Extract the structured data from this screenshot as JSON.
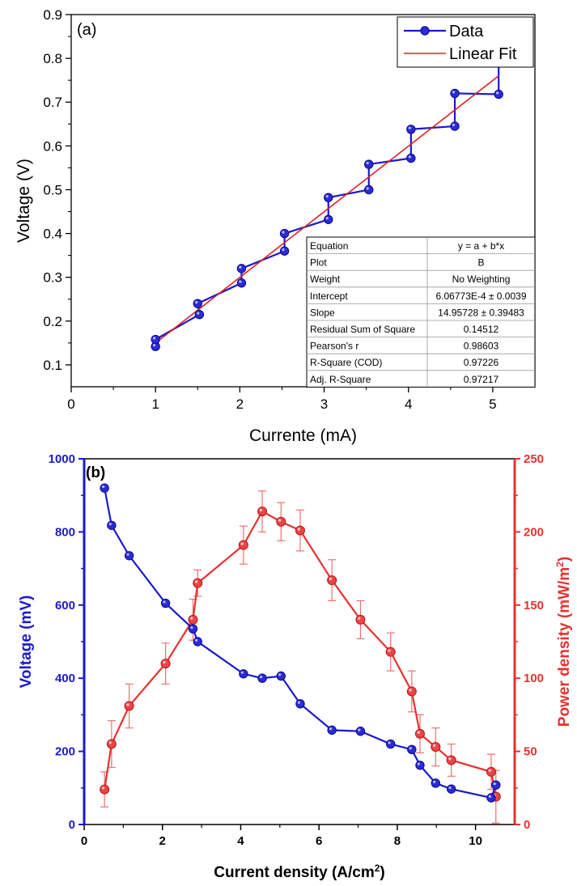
{
  "chart_data": [
    {
      "panel": "(a)",
      "type": "line",
      "xlabel": "Currente (mA)",
      "ylabel": "Voltage (V)",
      "xlim": [
        0,
        5.5
      ],
      "ylim": [
        0.05,
        0.9
      ],
      "x_ticks": [
        "0",
        "1",
        "2",
        "3",
        "4",
        "5"
      ],
      "y_ticks": [
        "0.1",
        "0.2",
        "0.3",
        "0.4",
        "0.5",
        "0.6",
        "0.7",
        "0.8",
        "0.9"
      ],
      "series": [
        {
          "name": "Data",
          "color": "#1a1acc",
          "marker": "circle",
          "x": [
            1.0,
            1.0,
            1.52,
            1.5,
            2.02,
            2.02,
            2.53,
            2.53,
            3.05,
            3.05,
            3.53,
            3.53,
            4.03,
            4.03,
            4.55,
            4.55,
            5.07,
            5.07
          ],
          "y": [
            0.142,
            0.158,
            0.215,
            0.24,
            0.287,
            0.32,
            0.36,
            0.4,
            0.432,
            0.482,
            0.5,
            0.558,
            0.572,
            0.638,
            0.645,
            0.72,
            0.718,
            0.8
          ]
        },
        {
          "name": "Linear Fit",
          "color": "#e0201c",
          "x": [
            1.0,
            5.07
          ],
          "y": [
            0.15,
            0.76
          ]
        }
      ],
      "legend": {
        "position": "top-right",
        "entries": [
          "Data",
          "Linear Fit"
        ]
      },
      "fit_table": [
        [
          "Equation",
          "y = a + b*x"
        ],
        [
          "Plot",
          "B"
        ],
        [
          "Weight",
          "No Weighting"
        ],
        [
          "Intercept",
          "6.06773E-4 ± 0.0039"
        ],
        [
          "Slope",
          "14.95728 ± 0.39483"
        ],
        [
          "Residual Sum of Square",
          "0.14512"
        ],
        [
          "Pearson's r",
          "0.98603"
        ],
        [
          "R-Square (COD)",
          "0.97226"
        ],
        [
          "Adj. R-Square",
          "0.97217"
        ]
      ]
    },
    {
      "panel": "(b)",
      "type": "line",
      "xlabel": "Current density (A/cm",
      "xlabel_sup": "2",
      "xlabel_end": ")",
      "ylabel": "Voltage (mV)",
      "y2label": "Power density (mW/m",
      "y2label_sup": "2",
      "y2label_end": ")",
      "xlim": [
        0,
        11
      ],
      "ylim": [
        0,
        1000
      ],
      "y2lim": [
        0,
        250
      ],
      "x_ticks": [
        "0",
        "2",
        "4",
        "6",
        "8",
        "10"
      ],
      "y_ticks": [
        "0",
        "200",
        "400",
        "600",
        "800",
        "1000"
      ],
      "y2_ticks": [
        "0",
        "50",
        "100",
        "150",
        "200",
        "250"
      ],
      "series": [
        {
          "name": "Voltage",
          "axis": "left",
          "color": "#1a1acc",
          "x": [
            0.52,
            0.7,
            1.15,
            2.08,
            2.78,
            2.9,
            4.07,
            4.55,
            5.03,
            5.52,
            6.33,
            7.06,
            7.83,
            8.37,
            8.58,
            8.98,
            9.38,
            10.4,
            10.52
          ],
          "y": [
            920,
            818,
            735,
            605,
            535,
            500,
            412,
            400,
            406,
            330,
            258,
            255,
            220,
            205,
            162,
            113,
            97,
            73,
            108
          ]
        },
        {
          "name": "Power density",
          "axis": "right",
          "color": "#e83030",
          "x": [
            0.52,
            0.7,
            1.15,
            2.08,
            2.78,
            2.9,
            4.07,
            4.55,
            5.03,
            5.52,
            6.33,
            7.06,
            7.83,
            8.37,
            8.58,
            8.98,
            9.38,
            10.4,
            10.52
          ],
          "y": [
            24,
            55,
            81,
            110,
            140,
            165,
            191,
            214,
            207,
            201,
            167,
            140,
            118,
            91,
            62,
            53,
            44,
            36,
            19
          ],
          "err": [
            12,
            16,
            15,
            14,
            14,
            9,
            13,
            14,
            13,
            14,
            14,
            13,
            13,
            14,
            13,
            13,
            11,
            12,
            18
          ]
        }
      ]
    }
  ]
}
